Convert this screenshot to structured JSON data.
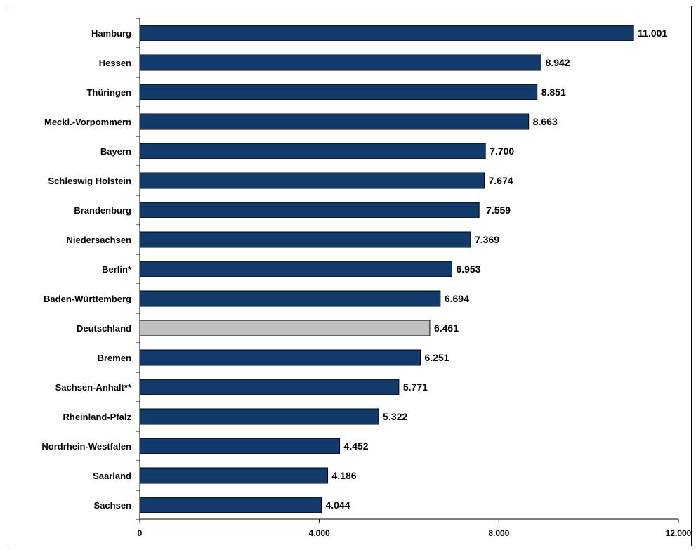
{
  "chart_data": {
    "type": "bar",
    "orientation": "horizontal",
    "title": "",
    "xlabel": "",
    "ylabel": "",
    "xlim": [
      0,
      12000
    ],
    "ticks": [
      {
        "value": 0,
        "label": "0"
      },
      {
        "value": 4000,
        "label": "4.000"
      },
      {
        "value": 8000,
        "label": "8.000"
      },
      {
        "value": 12000,
        "label": "12.000"
      }
    ],
    "grid": false,
    "legend": "none",
    "colors": {
      "bar": "#123A6A",
      "highlight": "#C0C0C0",
      "outline": "#000000"
    },
    "categories": [
      "Hamburg",
      "Hessen",
      "Thüringen",
      "Meckl.-Vorpommern",
      "Bayern",
      "Schleswig Holstein",
      "Brandenburg",
      "Niedersachsen",
      "Berlin*",
      "Baden-Württemberg",
      "Deutschland",
      "Bremen",
      "Sachsen-Anhalt**",
      "Rheinland-Pfalz",
      "Nordrhein-Westfalen",
      "Saarland",
      "Sachsen"
    ],
    "values": [
      11001,
      8942,
      8851,
      8663,
      7700,
      7674,
      7559,
      7369,
      6953,
      6694,
      6461,
      6251,
      5771,
      5322,
      4452,
      4186,
      4044
    ],
    "value_labels": [
      "11.001",
      "8.942",
      "8.851",
      "8.663",
      "7.700",
      "7.674",
      " 7.559",
      "7.369",
      "6.953",
      "6.694",
      "6.461",
      "6.251",
      "5.771",
      "5.322",
      "4.452",
      "4.186",
      "4.044"
    ],
    "highlighted": [
      "Deutschland"
    ]
  }
}
